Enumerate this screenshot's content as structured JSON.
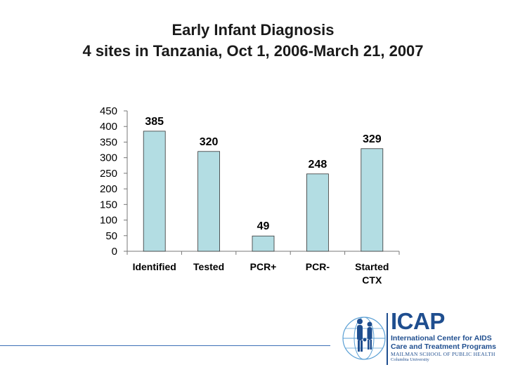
{
  "title_line1": "Early Infant Diagnosis",
  "title_line2": "4 sites in Tanzania, Oct 1, 2006-March 21, 2007",
  "chart_data": {
    "type": "bar",
    "categories": [
      [
        "Identified"
      ],
      [
        "Tested"
      ],
      [
        "PCR+"
      ],
      [
        "PCR-"
      ],
      [
        "Started",
        "CTX"
      ]
    ],
    "values": [
      385,
      320,
      49,
      248,
      329
    ],
    "data_labels": [
      "385",
      "320",
      "49",
      "248",
      "329"
    ],
    "yticks": [
      "0",
      "50",
      "100",
      "150",
      "200",
      "250",
      "300",
      "350",
      "400",
      "450"
    ],
    "ylim": [
      0,
      450
    ],
    "grid": false,
    "legend": "none",
    "bar_color": "#b3dde3",
    "bar_edge_color": "#333333"
  },
  "logo": {
    "name": "ICAP",
    "line1": "International Center for AIDS",
    "line2": "Care and Treatment Programs",
    "line3": "MAILMAN SCHOOL OF PUBLIC HEALTH",
    "line4": "Columbia University",
    "primary_color": "#1f4e8f",
    "accent_color": "#5a9fd4"
  }
}
